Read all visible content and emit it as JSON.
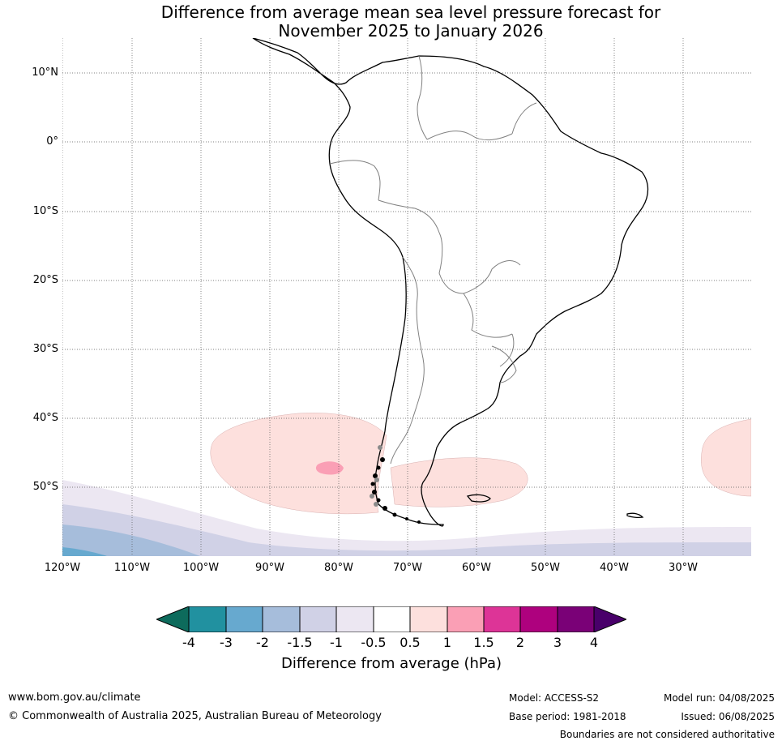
{
  "title_line1": "Difference from average mean sea level pressure forecast for",
  "title_line2": "November 2025 to January 2026",
  "map": {
    "latitude_labels": [
      "10°N",
      "0°",
      "10°S",
      "20°S",
      "30°S",
      "40°S",
      "50°S"
    ],
    "longitude_labels": [
      "120°W",
      "110°W",
      "100°W",
      "90°W",
      "80°W",
      "70°W",
      "60°W",
      "50°W",
      "40°W",
      "30°W"
    ],
    "region": "South America"
  },
  "colorbar": {
    "label": "Difference from average (hPa)",
    "tick_labels": [
      "-4",
      "-3",
      "-2",
      "-1.5",
      "-1",
      "-0.5",
      "0.5",
      "1",
      "1.5",
      "2",
      "3",
      "4"
    ],
    "colors": [
      "#0d6b5c",
      "#2191a0",
      "#67a9cf",
      "#a6bddb",
      "#d0d1e6",
      "#ece7f2",
      "#ffffff",
      "#fde0dd",
      "#fa9fb5",
      "#dd3497",
      "#ae017e",
      "#7a0177",
      "#49006a"
    ]
  },
  "footer": {
    "website": "www.bom.gov.au/climate",
    "copyright": "© Commonwealth of Australia 2025, Australian Bureau of Meteorology",
    "model": "Model: ACCESS-S2",
    "base_period": "Base period: 1981-2018",
    "model_run": "Model run: 04/08/2025",
    "issued": "Issued: 06/08/2025",
    "disclaimer": "Boundaries are not considered authoritative"
  }
}
